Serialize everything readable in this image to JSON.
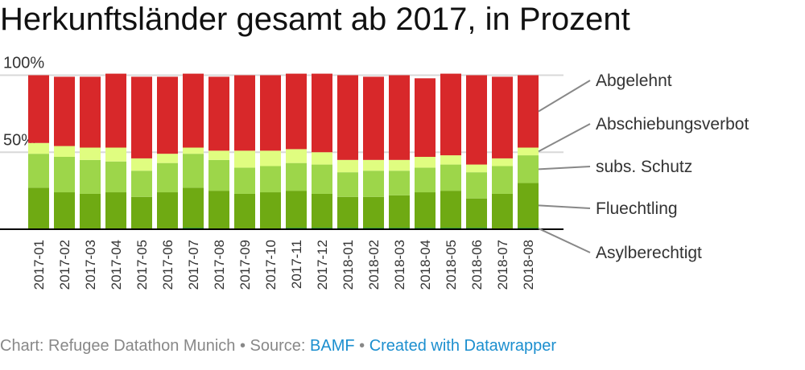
{
  "title": "Herkunftsländer gesamt ab 2017, in Prozent",
  "footer": {
    "prefix": "Chart: Refugee Datathon Munich",
    "sep1": " • Source: ",
    "source": "BAMF",
    "sep2": " • ",
    "credit": "Created with Datawrapper"
  },
  "chart_data": {
    "type": "bar",
    "stacked": true,
    "title": "Herkunftsländer gesamt ab 2017, in Prozent",
    "ylim": [
      0,
      100
    ],
    "yticks": [
      {
        "value": 100,
        "label": "100%"
      },
      {
        "value": 50,
        "label": "50%"
      }
    ],
    "grid": true,
    "legend": "right (direct labels)",
    "categories": [
      "2017-01",
      "2017-02",
      "2017-03",
      "2017-04",
      "2017-05",
      "2017-06",
      "2017-07",
      "2017-08",
      "2017-09",
      "2017-10",
      "2017-11",
      "2017-12",
      "2018-01",
      "2018-02",
      "2018-03",
      "2018-04",
      "2018-05",
      "2018-06",
      "2018-07",
      "2018-08"
    ],
    "series": [
      {
        "name": "Asylberechtigt",
        "color": "#2a9a2a",
        "values": [
          0,
          0,
          0,
          0,
          0,
          0,
          1,
          0,
          0,
          0,
          1,
          1,
          1,
          1,
          1,
          1,
          1,
          1,
          0,
          1
        ]
      },
      {
        "name": "Fluechtling",
        "color": "#6faa13",
        "values": [
          27,
          24,
          23,
          24,
          21,
          24,
          26,
          25,
          23,
          24,
          24,
          22,
          20,
          20,
          21,
          23,
          24,
          19,
          23,
          29
        ]
      },
      {
        "name": "subs. Schutz",
        "color": "#9dd64a",
        "values": [
          22,
          23,
          22,
          20,
          17,
          19,
          22,
          20,
          17,
          17,
          18,
          19,
          16,
          17,
          16,
          16,
          17,
          17,
          18,
          18
        ]
      },
      {
        "name": "Abschiebungsverbot",
        "color": "#e0fd80",
        "values": [
          7,
          7,
          8,
          9,
          8,
          6,
          4,
          6,
          11,
          10,
          9,
          8,
          8,
          7,
          7,
          7,
          6,
          5,
          5,
          5
        ]
      },
      {
        "name": "Abgelehnt",
        "color": "#d8282a",
        "values": [
          44,
          45,
          46,
          48,
          53,
          50,
          48,
          48,
          49,
          49,
          49,
          51,
          55,
          54,
          55,
          51,
          53,
          58,
          53,
          47
        ]
      }
    ]
  }
}
